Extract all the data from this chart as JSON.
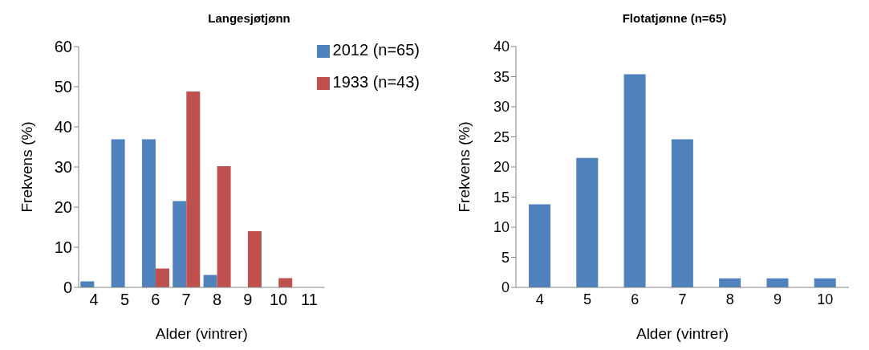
{
  "chart_data": [
    {
      "type": "bar",
      "title": "Langesjøtjønn",
      "xlabel": "Alder (vintrer)",
      "ylabel": "Frekvens (%)",
      "categories": [
        "4",
        "5",
        "6",
        "7",
        "8",
        "9",
        "10",
        "11"
      ],
      "series": [
        {
          "name": "2012 (n=65)",
          "color": "#4f81bd",
          "values": [
            1.5,
            36.9,
            36.9,
            21.5,
            3.1,
            0,
            0,
            0
          ]
        },
        {
          "name": "1933 (n=43)",
          "color": "#c0504d",
          "values": [
            0,
            0,
            4.7,
            48.8,
            30.2,
            14.0,
            2.3,
            0
          ]
        }
      ],
      "ylim": [
        0,
        60
      ],
      "yticks": [
        0,
        10,
        20,
        30,
        40,
        50,
        60
      ],
      "legend": "top right"
    },
    {
      "type": "bar",
      "title": "Flotatjønne (n=65)",
      "xlabel": "Alder (vintrer)",
      "ylabel": "Frekvens (%)",
      "categories": [
        "4",
        "5",
        "6",
        "7",
        "8",
        "9",
        "10"
      ],
      "values": [
        13.8,
        21.5,
        35.4,
        24.6,
        1.5,
        1.5,
        1.5
      ],
      "color": "#4f81bd",
      "ylim": [
        0,
        40
      ],
      "yticks": [
        0,
        5,
        10,
        15,
        20,
        25,
        30,
        35,
        40
      ]
    }
  ]
}
